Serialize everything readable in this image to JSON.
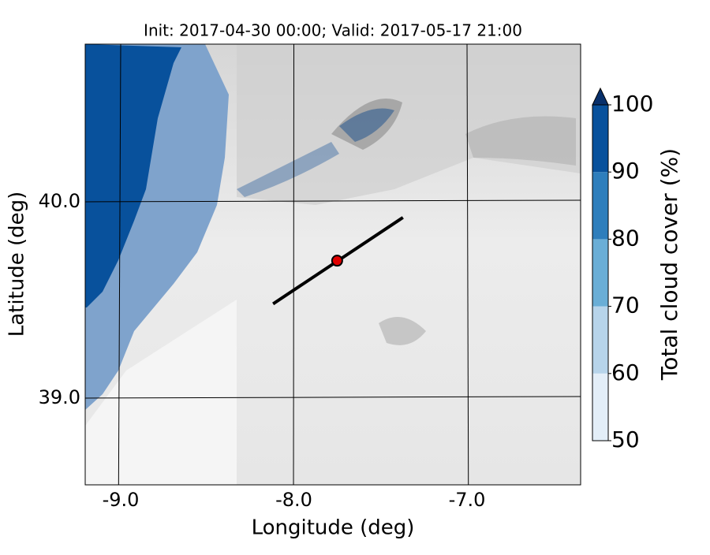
{
  "map": {
    "title": "Init: 2017-04-30 00:00; Valid: 2017-05-17 21:00",
    "xlabel": "Longitude (deg)",
    "ylabel": "Latitude (deg)",
    "xlim": [
      -9.205,
      -6.344
    ],
    "ylim": [
      38.558,
      40.803
    ],
    "xticks": [
      {
        "value": -9,
        "label": "-9.0"
      },
      {
        "value": -8,
        "label": "-8.0"
      },
      {
        "value": -7,
        "label": "-7.0"
      }
    ],
    "yticks": [
      {
        "value": 39,
        "label": "39.0"
      },
      {
        "value": 40,
        "label": "40.0"
      }
    ],
    "grid": true,
    "transect": {
      "lon": [
        -8.12,
        -7.37
      ],
      "lat": [
        39.48,
        39.92
      ],
      "color": "#000000"
    },
    "point": {
      "lon": -7.75,
      "lat": 39.7,
      "color": "#e00000"
    },
    "colorbar": {
      "label": "Total cloud cover (%)",
      "lim": [
        50,
        100
      ],
      "ticks": [
        50,
        60,
        70,
        80,
        90,
        100
      ],
      "colors": [
        "#e3eef8",
        "#b7d4ea",
        "#6aaed6",
        "#2e7ebc",
        "#08519c"
      ],
      "extend_color": "#08306b"
    }
  }
}
